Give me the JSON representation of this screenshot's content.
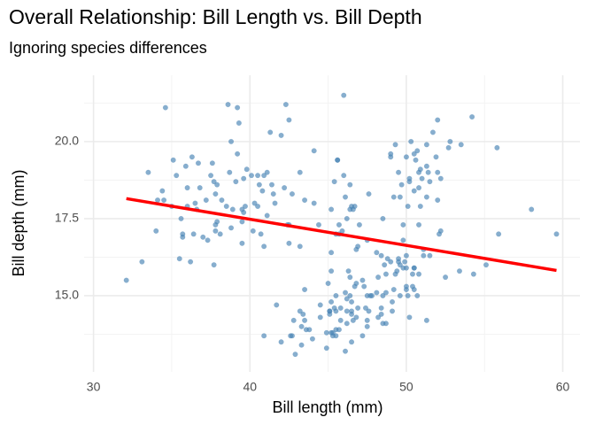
{
  "chart_data": {
    "type": "scatter",
    "title": "Overall Relationship: Bill Length vs. Bill Depth",
    "subtitle": "Ignoring species differences",
    "x_label": "Bill length (mm)",
    "y_label": "Bill depth (mm)",
    "color": "#4682b4",
    "xlim": [
      29.4,
      61.1
    ],
    "ylim": [
      12.53,
      22.15
    ],
    "xticks": [
      30,
      40,
      50,
      60
    ],
    "yticks": [
      {
        "value": 15,
        "label": "15.0"
      },
      {
        "value": 17.5,
        "label": "17.5"
      },
      {
        "value": 20,
        "label": "20.0"
      }
    ],
    "xminor": [
      35,
      45,
      55
    ],
    "yminor": [
      13.75,
      16.25,
      18.75,
      21.25
    ],
    "grid": true,
    "x": [
      39.1,
      39.5,
      40.3,
      36.7,
      39.3,
      38.9,
      39.2,
      34.1,
      42.0,
      37.8,
      37.8,
      41.1,
      38.6,
      34.6,
      36.6,
      38.7,
      42.5,
      34.4,
      46.0,
      37.8,
      37.7,
      35.9,
      38.2,
      38.8,
      35.3,
      40.6,
      40.5,
      37.9,
      40.5,
      39.5,
      37.2,
      39.5,
      40.9,
      36.4,
      39.2,
      38.8,
      42.2,
      37.6,
      39.8,
      36.5,
      40.8,
      36.0,
      44.1,
      37.0,
      39.6,
      41.1,
      37.5,
      36.0,
      42.3,
      39.6,
      40.1,
      35.0,
      42.7,
      34.5,
      41.4,
      35.7,
      32.1,
      33.1,
      35.5,
      38.1,
      41.5,
      36.2,
      37.3,
      35.7,
      40.2,
      33.5,
      43.2,
      40.7,
      37.7,
      41.6,
      36.8,
      39.7,
      35.1,
      38.5,
      44.1,
      36.3,
      34.0,
      41.3,
      35.6,
      37.9,
      46.1,
      50.0,
      48.7,
      50.0,
      47.6,
      46.5,
      45.4,
      46.7,
      43.3,
      46.8,
      40.9,
      49.0,
      45.5,
      48.4,
      45.8,
      49.3,
      42.0,
      49.2,
      46.2,
      48.7,
      50.2,
      45.1,
      46.5,
      46.3,
      42.9,
      46.1,
      44.5,
      47.8,
      48.2,
      50.0,
      47.3,
      42.8,
      45.1,
      59.6,
      49.1,
      48.4,
      42.6,
      44.4,
      44.0,
      48.7,
      42.7,
      49.6,
      45.3,
      49.6,
      50.5,
      43.6,
      45.5,
      50.5,
      44.9,
      45.2,
      46.6,
      48.5,
      45.1,
      50.1,
      46.5,
      45.0,
      43.8,
      45.5,
      43.2,
      50.4,
      45.3,
      46.2,
      45.7,
      54.3,
      45.8,
      49.8,
      49.5,
      43.5,
      50.7,
      47.7,
      46.4,
      48.2,
      46.5,
      46.4,
      48.6,
      47.5,
      51.1,
      45.2,
      45.2,
      49.1,
      52.5,
      47.4,
      50.0,
      44.9,
      50.8,
      43.4,
      51.3,
      47.5,
      52.1,
      47.5,
      52.2,
      45.5,
      49.5,
      44.5,
      50.8,
      49.4,
      46.9,
      48.4,
      51.1,
      48.5,
      55.9,
      47.2,
      41.7,
      53.4,
      43.3,
      48.1,
      50.5,
      49.8,
      43.5,
      51.5,
      46.2,
      55.1,
      48.8,
      47.2,
      46.8,
      50.4,
      45.2,
      49.9,
      46.5,
      50.0,
      51.3,
      45.4,
      52.7,
      45.2,
      46.1,
      51.3,
      46.0,
      51.3,
      46.6,
      51.7,
      47.0,
      52.0,
      45.9,
      50.5,
      50.3,
      58.0,
      46.4,
      49.2,
      42.4,
      48.5,
      43.2,
      50.6,
      46.7,
      52.0,
      50.5,
      49.5,
      46.4,
      52.8,
      40.9,
      54.2,
      42.5,
      51.0,
      49.7,
      47.5,
      47.6,
      52.0,
      46.9,
      53.5,
      49.0,
      46.2,
      50.9,
      45.5,
      50.9,
      50.8,
      50.1,
      49.0,
      51.5,
      49.8,
      48.1,
      51.4,
      45.7,
      50.7,
      42.5,
      52.2,
      45.6,
      49.3,
      50.2,
      45.6,
      51.9,
      46.8,
      45.7,
      55.8,
      43.5,
      49.6,
      50.8,
      50.2
    ],
    "values": [
      18.7,
      17.4,
      18.0,
      19.3,
      20.6,
      17.8,
      19.6,
      18.1,
      20.2,
      17.1,
      17.3,
      17.6,
      21.2,
      21.1,
      17.8,
      19.0,
      20.7,
      18.4,
      21.5,
      18.3,
      18.7,
      19.2,
      18.1,
      17.2,
      18.9,
      18.6,
      17.9,
      18.6,
      18.9,
      16.7,
      18.1,
      17.8,
      18.9,
      17.0,
      21.1,
      20.0,
      18.5,
      19.3,
      19.1,
      18.0,
      18.4,
      18.5,
      19.7,
      16.9,
      18.8,
      19.0,
      18.9,
      17.9,
      21.2,
      17.7,
      18.9,
      17.9,
      18.3,
      18.1,
      18.6,
      16.9,
      15.5,
      16.1,
      16.2,
      17.0,
      18.3,
      16.1,
      16.8,
      17.0,
      17.1,
      19.0,
      19.0,
      17.0,
      16.0,
      18.0,
      18.5,
      17.9,
      19.4,
      17.9,
      18.0,
      19.5,
      17.1,
      20.3,
      17.5,
      17.4,
      13.2,
      16.3,
      14.1,
      15.2,
      14.5,
      13.5,
      14.6,
      15.3,
      13.4,
      15.4,
      13.7,
      16.1,
      13.7,
      14.6,
      14.6,
      15.7,
      13.5,
      15.2,
      14.5,
      15.1,
      14.3,
      14.5,
      14.5,
      15.8,
      13.1,
      15.1,
      14.3,
      15.0,
      14.3,
      15.3,
      15.3,
      14.2,
      14.5,
      17.0,
      14.8,
      16.3,
      13.7,
      17.3,
      13.6,
      15.7,
      13.7,
      16.0,
      13.7,
      15.0,
      15.9,
      13.9,
      13.9,
      15.9,
      13.3,
      15.8,
      14.2,
      14.1,
      14.4,
      15.0,
      14.4,
      15.4,
      13.9,
      15.0,
      14.5,
      15.3,
      13.8,
      14.9,
      13.9,
      15.7,
      14.2,
      16.8,
      16.2,
      14.2,
      15.0,
      15.0,
      15.6,
      15.6,
      14.8,
      15.0,
      16.0,
      14.2,
      16.3,
      13.8,
      16.4,
      14.5,
      15.6,
      14.6,
      15.9,
      13.8,
      17.3,
      14.4,
      14.2,
      14.0,
      17.0,
      15.0,
      17.1,
      14.5,
      16.1,
      14.7,
      15.7,
      15.8,
      14.6,
      14.4,
      16.5,
      15.0,
      17.0,
      15.5,
      14.7,
      15.8,
      14.0,
      15.1,
      15.2,
      15.9,
      15.2,
      16.3,
      14.1,
      16.0,
      16.2,
      13.7,
      14.3,
      15.7,
      14.8,
      16.1,
      17.9,
      19.5,
      19.2,
      18.7,
      19.8,
      17.8,
      18.2,
      18.2,
      18.9,
      19.9,
      17.8,
      20.3,
      17.3,
      18.1,
      17.1,
      19.6,
      20.0,
      17.8,
      18.6,
      18.2,
      17.3,
      17.5,
      16.6,
      19.4,
      17.9,
      19.0,
      18.4,
      19.0,
      17.8,
      20.0,
      16.6,
      20.8,
      16.7,
      18.8,
      18.6,
      16.8,
      18.3,
      20.7,
      16.6,
      19.9,
      19.5,
      17.5,
      19.1,
      17.0,
      17.9,
      18.5,
      17.9,
      19.6,
      18.7,
      17.3,
      16.4,
      19.0,
      17.3,
      19.7,
      17.3,
      18.8,
      19.4,
      19.9,
      18.8,
      19.4,
      19.5,
      16.5,
      17.0,
      19.8,
      18.1,
      18.2,
      19.0,
      18.7
    ],
    "trend": {
      "x": [
        32.1,
        59.6
      ],
      "values": [
        18.15,
        15.82
      ],
      "color": "#ff0000"
    }
  }
}
